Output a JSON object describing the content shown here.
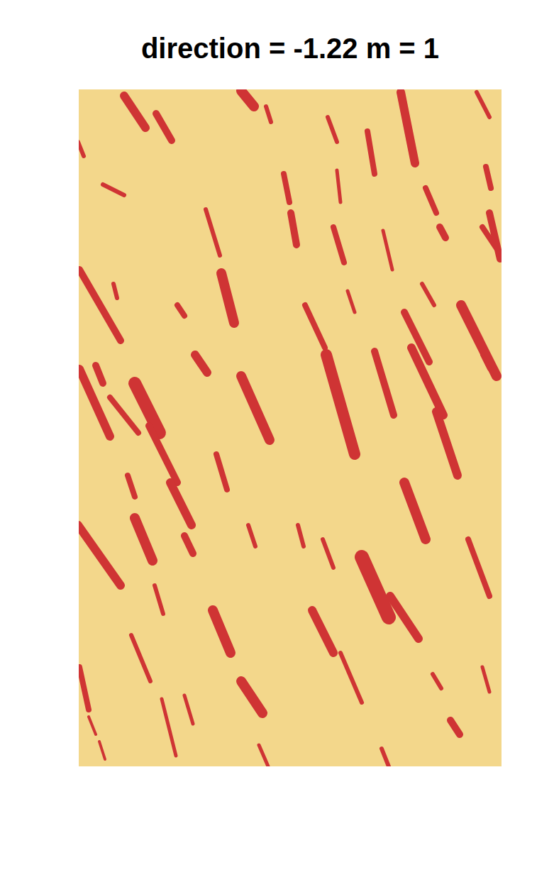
{
  "chart_data": {
    "type": "binary_map",
    "title": "direction = -1.22 m = 1",
    "colors": [
      "#f3d78b",
      "#cf3434"
    ],
    "tick_labels": false,
    "xlim": [
      111,
      707
    ],
    "ylim": [
      126,
      1080
    ],
    "segments": [
      [
        175,
        135,
        205,
        180,
        12
      ],
      [
        220,
        160,
        242,
        198,
        10
      ],
      [
        340,
        128,
        358,
        150,
        14
      ],
      [
        375,
        150,
        382,
        172,
        6
      ],
      [
        462,
        165,
        475,
        200,
        6
      ],
      [
        518,
        185,
        528,
        245,
        8
      ],
      [
        565,
        130,
        585,
        230,
        12
      ],
      [
        672,
        130,
        690,
        165,
        6
      ],
      [
        685,
        235,
        692,
        265,
        8
      ],
      [
        400,
        245,
        408,
        285,
        8
      ],
      [
        475,
        240,
        480,
        285,
        5
      ],
      [
        410,
        300,
        418,
        345,
        10
      ],
      [
        290,
        295,
        310,
        360,
        6
      ],
      [
        470,
        320,
        485,
        370,
        8
      ],
      [
        540,
        325,
        553,
        380,
        5
      ],
      [
        600,
        265,
        615,
        300,
        8
      ],
      [
        690,
        300,
        705,
        365,
        10
      ],
      [
        112,
        380,
        170,
        480,
        10
      ],
      [
        312,
        385,
        330,
        455,
        14
      ],
      [
        430,
        430,
        458,
        490,
        8
      ],
      [
        490,
        410,
        500,
        440,
        5
      ],
      [
        595,
        400,
        612,
        430,
        6
      ],
      [
        570,
        440,
        605,
        510,
        10
      ],
      [
        650,
        430,
        700,
        530,
        14
      ],
      [
        112,
        520,
        155,
        615,
        12
      ],
      [
        155,
        560,
        195,
        610,
        8
      ],
      [
        190,
        540,
        225,
        610,
        18
      ],
      [
        210,
        600,
        250,
        680,
        10
      ],
      [
        340,
        530,
        380,
        620,
        14
      ],
      [
        460,
        500,
        500,
        640,
        16
      ],
      [
        528,
        495,
        555,
        585,
        10
      ],
      [
        580,
        490,
        625,
        585,
        12
      ],
      [
        615,
        580,
        645,
        670,
        12
      ],
      [
        240,
        680,
        270,
        740,
        12
      ],
      [
        305,
        640,
        320,
        690,
        8
      ],
      [
        180,
        670,
        190,
        700,
        8
      ],
      [
        190,
        730,
        215,
        790,
        14
      ],
      [
        110,
        740,
        170,
        825,
        12
      ],
      [
        260,
        755,
        272,
        780,
        10
      ],
      [
        218,
        825,
        230,
        865,
        6
      ],
      [
        300,
        860,
        325,
        920,
        14
      ],
      [
        350,
        740,
        360,
        770,
        6
      ],
      [
        420,
        740,
        428,
        770,
        6
      ],
      [
        455,
        760,
        470,
        800,
        6
      ],
      [
        510,
        785,
        548,
        870,
        20
      ],
      [
        550,
        840,
        590,
        900,
        12
      ],
      [
        570,
        680,
        600,
        760,
        14
      ],
      [
        660,
        760,
        690,
        840,
        8
      ],
      [
        440,
        860,
        470,
        920,
        12
      ],
      [
        480,
        920,
        510,
        990,
        6
      ],
      [
        340,
        960,
        370,
        1005,
        14
      ],
      [
        112,
        940,
        125,
        1000,
        8
      ],
      [
        185,
        895,
        212,
        960,
        6
      ],
      [
        228,
        985,
        248,
        1065,
        5
      ],
      [
        260,
        980,
        272,
        1020,
        5
      ],
      [
        125,
        1010,
        135,
        1035,
        4
      ],
      [
        140,
        1045,
        148,
        1070,
        4
      ],
      [
        365,
        1050,
        378,
        1080,
        5
      ],
      [
        538,
        1055,
        548,
        1080,
        6
      ],
      [
        635,
        1015,
        648,
        1035,
        10
      ],
      [
        680,
        940,
        690,
        975,
        5
      ],
      [
        610,
        950,
        622,
        970,
        6
      ],
      [
        250,
        430,
        260,
        445,
        8
      ],
      [
        135,
        515,
        145,
        540,
        10
      ],
      [
        275,
        500,
        292,
        525,
        12
      ],
      [
        160,
        400,
        165,
        420,
        6
      ],
      [
        680,
        500,
        690,
        520,
        6
      ],
      [
        620,
        320,
        628,
        335,
        10
      ],
      [
        680,
        320,
        700,
        350,
        8
      ],
      [
        145,
        260,
        175,
        275,
        6
      ],
      [
        110,
        200,
        118,
        220,
        6
      ]
    ]
  }
}
